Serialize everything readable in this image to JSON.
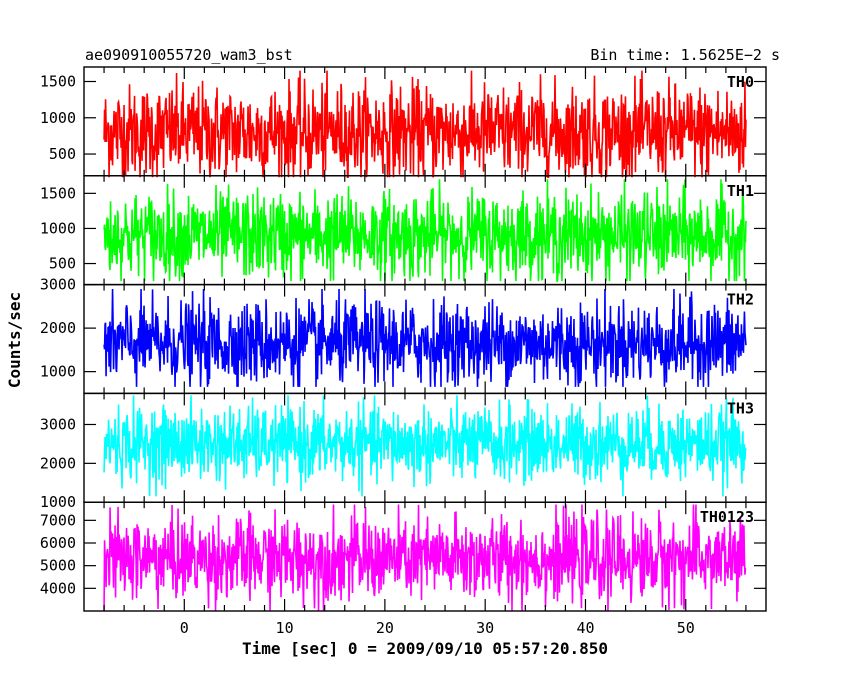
{
  "title": "ae090910055720_wam3_bst",
  "bin_time": "Bin time: 1.5625E−2 s",
  "xlabel": "Time [sec] 0 = 2009/09/10 05:57:20.850",
  "ylabel": "Counts/sec",
  "chart_data": {
    "type": "line",
    "title": "ae090910055720_wam3_bst",
    "subtitle": "Bin time: 1.5625E−2 s",
    "xlabel": "Time [sec] 0 = 2009/09/10 05:57:20.850",
    "ylabel": "Counts/sec",
    "xlim": [
      -10,
      58
    ],
    "x_ticks": [
      0,
      10,
      20,
      30,
      40,
      50
    ],
    "x_range_data": [
      -8,
      56
    ],
    "grid": false,
    "panels": [
      {
        "name": "TH0",
        "color": "#ff0000",
        "ylim": [
          200,
          1700
        ],
        "y_ticks": [
          500,
          1000,
          1500
        ],
        "mean": 800,
        "min": 180,
        "max": 1650
      },
      {
        "name": "TH1",
        "color": "#00ff00",
        "ylim": [
          200,
          1750
        ],
        "y_ticks": [
          500,
          1000,
          1500
        ],
        "mean": 900,
        "min": 250,
        "max": 1700
      },
      {
        "name": "TH2",
        "color": "#0000ff",
        "ylim": [
          500,
          3000
        ],
        "y_ticks": [
          1000,
          2000,
          3000
        ],
        "mean": 1650,
        "min": 650,
        "max": 2900
      },
      {
        "name": "TH3",
        "color": "#00ffff",
        "ylim": [
          1000,
          3800
        ],
        "y_ticks": [
          1000,
          2000,
          3000
        ],
        "mean": 2500,
        "min": 1150,
        "max": 3750
      },
      {
        "name": "TH0123",
        "color": "#ff00ff",
        "ylim": [
          3000,
          7800
        ],
        "y_ticks": [
          4000,
          5000,
          6000,
          7000
        ],
        "mean": 5300,
        "min": 3000,
        "max": 7700
      }
    ]
  }
}
